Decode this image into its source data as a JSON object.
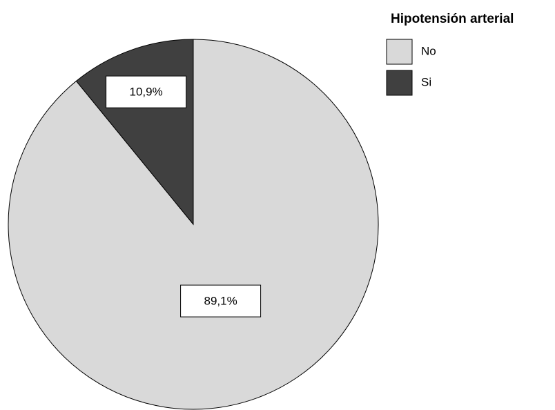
{
  "chart_data": {
    "type": "pie",
    "legend_title": "Hipotensión arterial",
    "categories": [
      "No",
      "Si"
    ],
    "values": [
      89.1,
      10.9
    ],
    "value_labels": [
      "89,1%",
      "10,9%"
    ],
    "colors": [
      "#d9d9d9",
      "#404040"
    ],
    "legend": "top-right"
  }
}
